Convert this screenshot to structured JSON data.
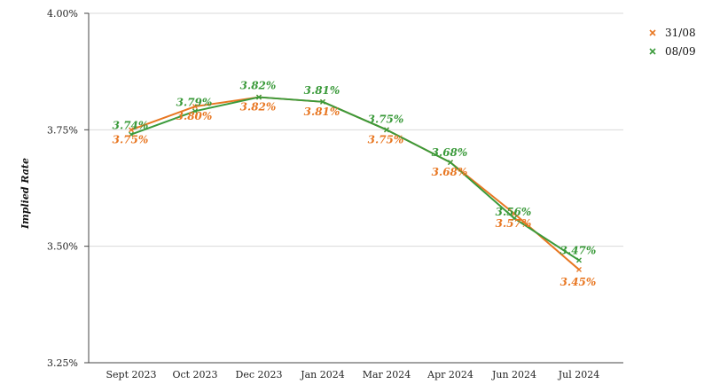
{
  "chart_data": {
    "type": "line",
    "ylabel": "Implied Rate",
    "ylim": [
      3.25,
      4.0
    ],
    "yticks": [
      3.25,
      3.5,
      3.75,
      4.0
    ],
    "ytick_labels": [
      "3.25%",
      "3.50%",
      "3.75%",
      "4.00%"
    ],
    "grid": true,
    "legend_position": "top-right",
    "categories": [
      "Sept 2023",
      "Oct 2023",
      "Dec 2023",
      "Jan 2024",
      "Mar 2024",
      "Apr 2024",
      "Jun 2024",
      "Jul 2024"
    ],
    "series": [
      {
        "name": "31/08",
        "color": "#E87722",
        "values": [
          3.75,
          3.8,
          3.82,
          3.81,
          3.75,
          3.68,
          3.57,
          3.45
        ],
        "labels": [
          "3.75%",
          "3.80%",
          "3.82%",
          "3.81%",
          "3.75%",
          "3.68%",
          "3.57%",
          "3.45%"
        ]
      },
      {
        "name": "08/09",
        "color": "#3A9A3A",
        "values": [
          3.74,
          3.79,
          3.82,
          3.81,
          3.75,
          3.68,
          3.56,
          3.47
        ],
        "labels": [
          "3.74%",
          "3.79%",
          "3.82%",
          "3.81%",
          "3.75%",
          "3.68%",
          "3.56%",
          "3.47%"
        ]
      }
    ]
  }
}
